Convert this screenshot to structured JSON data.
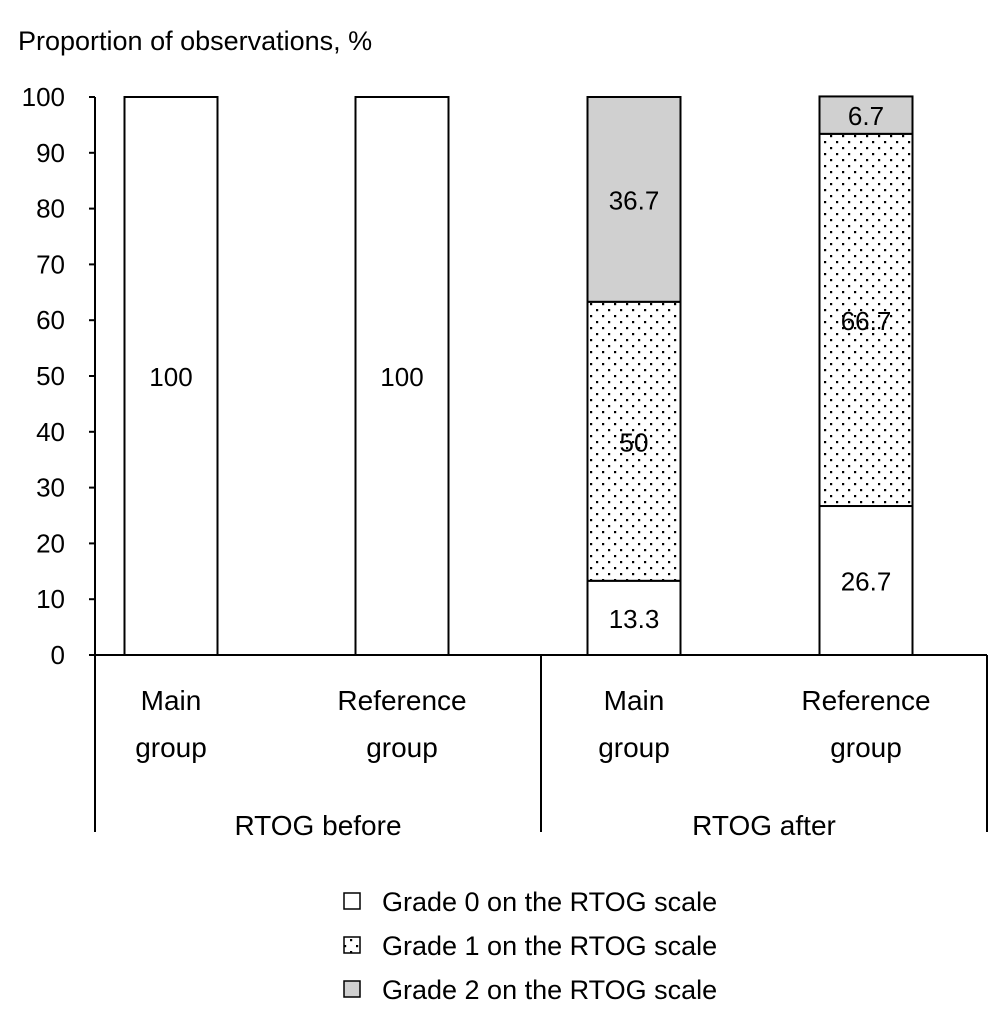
{
  "chart_data": {
    "type": "bar",
    "stacked": true,
    "ylabel": "Proportion of observations, %",
    "ylim": [
      0,
      100
    ],
    "yticks": [
      0,
      10,
      20,
      30,
      40,
      50,
      60,
      70,
      80,
      90,
      100
    ],
    "grid": false,
    "legend_position": "bottom",
    "groups": [
      {
        "label": "RTOG before",
        "categories": [
          "Main group",
          "Reference group"
        ]
      },
      {
        "label": "RTOG after",
        "categories": [
          "Main group",
          "Reference group"
        ]
      }
    ],
    "category_lines": [
      [
        "Main",
        "group"
      ],
      [
        "Reference",
        "group"
      ],
      [
        "Main",
        "group"
      ],
      [
        "Reference",
        "group"
      ]
    ],
    "series": [
      {
        "name": "Grade 0 on the RTOG scale",
        "fill": "#ffffff",
        "pattern": "none",
        "values": [
          100,
          100,
          13.3,
          26.7
        ],
        "labels": [
          "100",
          "100",
          "13.3",
          "26.7"
        ]
      },
      {
        "name": "Grade 1 on the RTOG scale",
        "fill": "#ffffff",
        "pattern": "dots",
        "values": [
          0,
          0,
          50,
          66.7
        ],
        "labels": [
          "",
          "",
          "50",
          "66.7"
        ]
      },
      {
        "name": "Grade 2 on the RTOG scale",
        "fill": "#d0d0d0",
        "pattern": "none",
        "values": [
          0,
          0,
          36.7,
          6.7
        ],
        "labels": [
          "",
          "",
          "36.7",
          "6.7"
        ]
      }
    ]
  }
}
